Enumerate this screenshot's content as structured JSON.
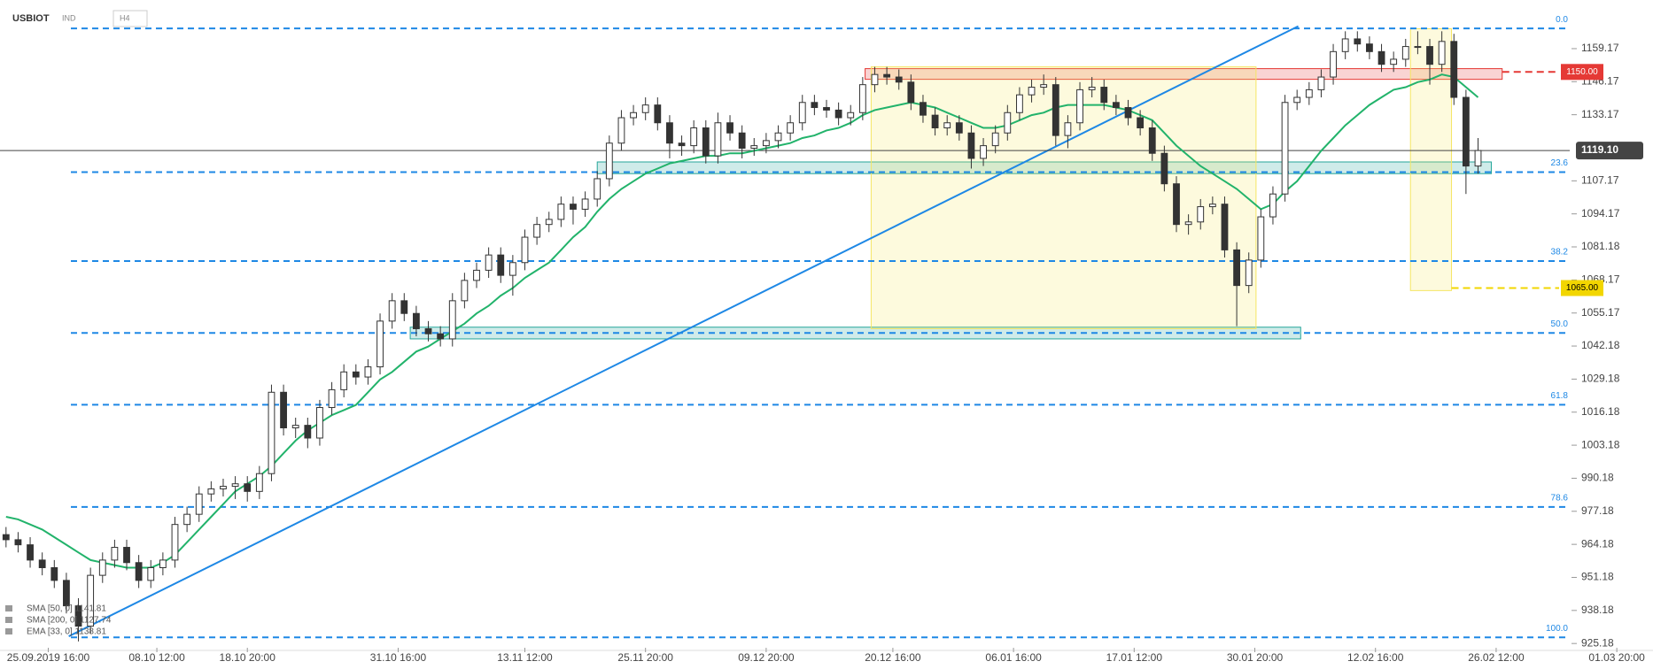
{
  "chart_data": {
    "type": "candlestick",
    "symbol": "USBIOT",
    "instrument_type": "IND",
    "interval": "H4",
    "xlim": [
      0,
      137
    ],
    "xticks": [
      {
        "value": 4,
        "label": "25.09.2019 16:00"
      },
      {
        "value": 13,
        "label": "08.10 12:00"
      },
      {
        "value": 20.5,
        "label": "18.10 20:00"
      },
      {
        "value": 33,
        "label": "31.10 16:00"
      },
      {
        "value": 43.5,
        "label": "13.11 12:00"
      },
      {
        "value": 53.5,
        "label": "25.11 20:00"
      },
      {
        "value": 63.5,
        "label": "09.12 20:00"
      },
      {
        "value": 74,
        "label": "20.12 16:00"
      },
      {
        "value": 84,
        "label": "06.01 16:00"
      },
      {
        "value": 94,
        "label": "17.01 12:00"
      },
      {
        "value": 104,
        "label": "30.01 20:00"
      },
      {
        "value": 114,
        "label": "12.02 16:00"
      },
      {
        "value": 124,
        "label": "26.02 12:00"
      },
      {
        "value": 134,
        "label": "01.03 20:00"
      }
    ],
    "ylim": [
      923.5,
      1178.3
    ],
    "yticks": [
      1159.17,
      1146.17,
      1133.17,
      1107.17,
      1094.17,
      1081.18,
      1068.17,
      1055.17,
      1042.18,
      1029.18,
      1016.18,
      1003.18,
      990.18,
      977.18,
      964.18,
      951.18,
      938.18,
      925.18
    ],
    "up_color": "#ffffff",
    "down_color": "#333333",
    "wick_color": "#333333",
    "open": [
      968,
      966,
      964,
      958,
      955,
      950,
      940,
      932,
      952,
      958,
      963,
      957,
      950,
      955,
      958,
      972,
      976,
      984,
      986,
      987,
      988,
      985,
      992,
      1024,
      1010,
      1011,
      1006,
      1018,
      1025,
      1032,
      1030,
      1034,
      1052,
      1060,
      1055,
      1049,
      1047,
      1045,
      1060,
      1068,
      1072,
      1078,
      1070,
      1075,
      1085,
      1090,
      1092,
      1098,
      1096,
      1100,
      1108,
      1122,
      1132,
      1134,
      1137,
      1130,
      1122,
      1121,
      1128,
      1117,
      1130,
      1126,
      1120,
      1121,
      1123,
      1126,
      1130,
      1138,
      1136,
      1135,
      1132,
      1134,
      1145,
      1149,
      1148,
      1146,
      1138,
      1133,
      1128,
      1130,
      1126,
      1116,
      1121,
      1126,
      1134,
      1141,
      1144,
      1145,
      1125,
      1130,
      1143,
      1144,
      1138,
      1136,
      1132,
      1128,
      1118,
      1106,
      1090,
      1091,
      1097,
      1098,
      1080,
      1066,
      1076,
      1093,
      1102,
      1138,
      1140,
      1143,
      1148,
      1158,
      1163,
      1161,
      1158,
      1153,
      1155,
      1160,
      1160,
      1153,
      1162,
      1140,
      1113
    ],
    "high": [
      971,
      969,
      967,
      961,
      958,
      953,
      943,
      955,
      961,
      966,
      966,
      960,
      958,
      961,
      975,
      979,
      987,
      989,
      990,
      991,
      991,
      995,
      1027,
      1027,
      1014,
      1014,
      1021,
      1028,
      1035,
      1035,
      1037,
      1055,
      1063,
      1063,
      1058,
      1052,
      1050,
      1063,
      1071,
      1075,
      1081,
      1081,
      1078,
      1088,
      1093,
      1095,
      1101,
      1101,
      1103,
      1111,
      1125,
      1135,
      1137,
      1140,
      1140,
      1133,
      1125,
      1131,
      1131,
      1134,
      1133,
      1129,
      1124,
      1126,
      1129,
      1133,
      1141,
      1141,
      1139,
      1138,
      1137,
      1148,
      1152,
      1152,
      1151,
      1149,
      1141,
      1136,
      1133,
      1133,
      1129,
      1124,
      1129,
      1137,
      1144,
      1147,
      1149,
      1148,
      1133,
      1146,
      1148,
      1147,
      1141,
      1139,
      1135,
      1131,
      1121,
      1109,
      1094,
      1100,
      1101,
      1101,
      1083,
      1079,
      1096,
      1105,
      1141,
      1143,
      1146,
      1151,
      1161,
      1166,
      1166,
      1164,
      1161,
      1158,
      1163,
      1166,
      1163,
      1166,
      1165,
      1143,
      1124
    ],
    "low": [
      963,
      961,
      955,
      952,
      947,
      937,
      926,
      929,
      949,
      955,
      954,
      947,
      947,
      952,
      955,
      969,
      973,
      981,
      983,
      982,
      981,
      982,
      989,
      1007,
      1006,
      1002,
      1003,
      1015,
      1022,
      1027,
      1027,
      1031,
      1049,
      1052,
      1046,
      1044,
      1042,
      1042,
      1057,
      1065,
      1069,
      1067,
      1062,
      1072,
      1082,
      1087,
      1089,
      1090,
      1093,
      1097,
      1105,
      1119,
      1129,
      1131,
      1127,
      1116,
      1117,
      1118,
      1114,
      1114,
      1123,
      1116,
      1117,
      1118,
      1120,
      1123,
      1127,
      1133,
      1132,
      1129,
      1129,
      1131,
      1142,
      1145,
      1143,
      1135,
      1130,
      1125,
      1125,
      1123,
      1112,
      1113,
      1118,
      1123,
      1131,
      1138,
      1141,
      1121,
      1120,
      1127,
      1140,
      1135,
      1133,
      1129,
      1125,
      1115,
      1103,
      1087,
      1086,
      1088,
      1094,
      1077,
      1050,
      1063,
      1073,
      1090,
      1099,
      1135,
      1137,
      1140,
      1145,
      1155,
      1158,
      1155,
      1150,
      1150,
      1152,
      1157,
      1145,
      1150,
      1137,
      1102,
      1110
    ],
    "close": [
      966,
      964,
      958,
      955,
      950,
      940,
      932,
      952,
      958,
      963,
      957,
      950,
      955,
      958,
      972,
      976,
      984,
      986,
      987,
      988,
      985,
      992,
      1024,
      1010,
      1011,
      1006,
      1018,
      1025,
      1032,
      1030,
      1034,
      1052,
      1060,
      1055,
      1049,
      1047,
      1045,
      1060,
      1068,
      1072,
      1078,
      1070,
      1075,
      1085,
      1090,
      1092,
      1098,
      1096,
      1100,
      1108,
      1122,
      1132,
      1134,
      1137,
      1130,
      1122,
      1121,
      1128,
      1117,
      1130,
      1126,
      1120,
      1121,
      1123,
      1126,
      1130,
      1138,
      1136,
      1135,
      1132,
      1134,
      1145,
      1149,
      1148,
      1146,
      1138,
      1133,
      1128,
      1130,
      1126,
      1116,
      1121,
      1126,
      1134,
      1141,
      1144,
      1145,
      1125,
      1130,
      1143,
      1144,
      1138,
      1136,
      1132,
      1128,
      1118,
      1106,
      1090,
      1091,
      1097,
      1098,
      1080,
      1066,
      1076,
      1093,
      1102,
      1138,
      1140,
      1143,
      1148,
      1158,
      1163,
      1161,
      1158,
      1153,
      1155,
      1160,
      1160,
      1153,
      1162,
      1140,
      1113,
      1119.1
    ],
    "ma_line": {
      "color": "#22b36b",
      "values": [
        975,
        974,
        972,
        970,
        967,
        964,
        961,
        958,
        957,
        956,
        955,
        955,
        955,
        957,
        960,
        965,
        970,
        975,
        980,
        985,
        988,
        991,
        995,
        1000,
        1005,
        1009,
        1012,
        1015,
        1017,
        1019,
        1024,
        1029,
        1032,
        1036,
        1040,
        1042,
        1045,
        1048,
        1051,
        1055,
        1058,
        1062,
        1065,
        1069,
        1072,
        1075,
        1080,
        1085,
        1089,
        1095,
        1100,
        1104,
        1107,
        1110,
        1112,
        1114,
        1115,
        1116,
        1117,
        1117,
        1118,
        1118,
        1119,
        1120,
        1121,
        1122,
        1124,
        1125,
        1127,
        1128,
        1130,
        1133,
        1135,
        1136,
        1137,
        1138,
        1137,
        1136,
        1134,
        1132,
        1130,
        1128,
        1128,
        1129,
        1131,
        1133,
        1134,
        1136,
        1137,
        1137,
        1137,
        1137,
        1136,
        1135,
        1133,
        1131,
        1126,
        1121,
        1117,
        1113,
        1110,
        1107,
        1104,
        1100,
        1096,
        1098,
        1103,
        1107,
        1113,
        1119,
        1124,
        1129,
        1133,
        1137,
        1140,
        1143,
        1144,
        1146,
        1147,
        1149,
        1148,
        1144,
        1140
      ]
    },
    "trendline": {
      "color": "#1e88e5",
      "x": [
        5.7,
        107.6
      ],
      "y": [
        928,
        1168
      ]
    },
    "fib_levels": [
      {
        "value": 1167.1,
        "label": "0.0"
      },
      {
        "value": 1110.6,
        "label": "23.6"
      },
      {
        "value": 1075.6,
        "label": "38.2"
      },
      {
        "value": 1047.35,
        "label": "50.0"
      },
      {
        "value": 1019.1,
        "label": "61.8"
      },
      {
        "value": 978.9,
        "label": "78.6"
      },
      {
        "value": 927.6,
        "label": "100.0"
      }
    ],
    "fib_color": "#1e88e5",
    "zones": [
      {
        "x": [
          71.7,
          124.5
        ],
        "y": [
          1147.1,
          1151.3
        ],
        "color": "#e53935"
      },
      {
        "x": [
          49.5,
          123.6
        ],
        "y": [
          1110.0,
          1114.6
        ],
        "color": "#26a69a"
      },
      {
        "x": [
          34.0,
          107.8
        ],
        "y": [
          1045.0,
          1049.6
        ],
        "color": "#26a69a"
      },
      {
        "x": [
          72.2,
          104.1
        ],
        "y": [
          1049,
          1152
        ],
        "color": "#f5e663"
      },
      {
        "x": [
          116.9,
          120.3
        ],
        "y": [
          1064,
          1167
        ],
        "color": "#f5e663"
      }
    ],
    "price_lines": [
      {
        "value": 1150,
        "label": "1150.00",
        "color": "#e53935",
        "from": 124.5
      },
      {
        "value": 1065,
        "label": "1065.00",
        "color": "#f2d600",
        "from": 120.3
      }
    ],
    "last_price": {
      "value": 1119.1,
      "label": "1119.10",
      "color": "#444444"
    },
    "legend_entries": [
      "SMA [50, 0] 1141.81",
      "SMA [200, 0] 1127.74",
      "EMA [33, 0] 1138.81"
    ]
  }
}
